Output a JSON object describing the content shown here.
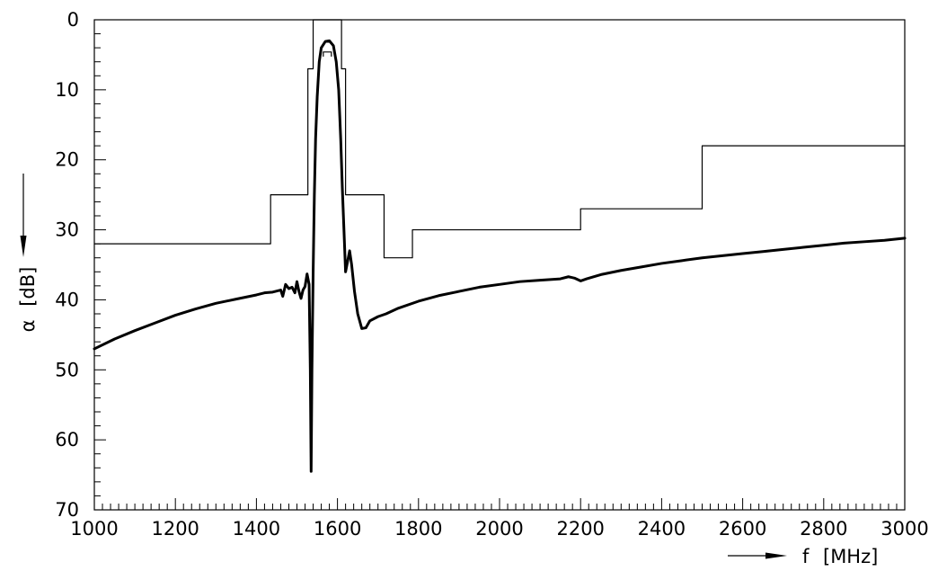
{
  "chart_data": {
    "type": "line",
    "x_axis": {
      "label": "f",
      "unit": "[MHz]",
      "range": [
        1000,
        3000
      ],
      "major_ticks": [
        1000,
        1200,
        1400,
        1600,
        1800,
        2000,
        2200,
        2400,
        2600,
        2800,
        3000
      ],
      "minor_step": 20
    },
    "y_axis": {
      "label": "α",
      "unit": "[dB]",
      "range": [
        0,
        70
      ],
      "inverted": true,
      "major_ticks": [
        0,
        10,
        20,
        30,
        40,
        50,
        60,
        70
      ],
      "minor_step": 2
    },
    "grid": false,
    "legend": "none",
    "series": [
      {
        "kind": "attenuation mask (step limit)",
        "style": "thin",
        "points": [
          [
            1000,
            32
          ],
          [
            1435,
            32
          ],
          [
            1435,
            25
          ],
          [
            1527,
            25
          ],
          [
            1527,
            7
          ],
          [
            1540,
            7
          ],
          [
            1540,
            0
          ],
          [
            1610,
            0
          ],
          [
            1610,
            7
          ],
          [
            1620,
            7
          ],
          [
            1620,
            25
          ],
          [
            1715,
            25
          ],
          [
            1715,
            34
          ],
          [
            1785,
            34
          ],
          [
            1785,
            30
          ],
          [
            2200,
            30
          ],
          [
            2200,
            27
          ],
          [
            2500,
            27
          ],
          [
            2500,
            18
          ],
          [
            3000,
            18
          ]
        ]
      },
      {
        "kind": "passband marker",
        "style": "thin",
        "points": [
          [
            1565,
            5.2
          ],
          [
            1565,
            4.6
          ],
          [
            1585,
            4.6
          ],
          [
            1585,
            5.2
          ]
        ]
      },
      {
        "kind": "measured attenuation",
        "style": "bold",
        "points": [
          [
            1000,
            47
          ],
          [
            1050,
            45.6
          ],
          [
            1100,
            44.4
          ],
          [
            1150,
            43.3
          ],
          [
            1200,
            42.2
          ],
          [
            1250,
            41.3
          ],
          [
            1300,
            40.5
          ],
          [
            1350,
            39.9
          ],
          [
            1400,
            39.3
          ],
          [
            1420,
            39
          ],
          [
            1440,
            38.9
          ],
          [
            1460,
            38.6
          ],
          [
            1465,
            39.5
          ],
          [
            1472,
            37.8
          ],
          [
            1480,
            38.4
          ],
          [
            1488,
            38.2
          ],
          [
            1495,
            39
          ],
          [
            1500,
            37.4
          ],
          [
            1505,
            38.8
          ],
          [
            1510,
            39.8
          ],
          [
            1515,
            38.6
          ],
          [
            1520,
            38.1
          ],
          [
            1525,
            36.3
          ],
          [
            1530,
            37.8
          ],
          [
            1533,
            50
          ],
          [
            1535,
            64.5
          ],
          [
            1537,
            50
          ],
          [
            1540,
            36
          ],
          [
            1543,
            25
          ],
          [
            1546,
            17
          ],
          [
            1550,
            11
          ],
          [
            1555,
            6
          ],
          [
            1560,
            4
          ],
          [
            1570,
            3.1
          ],
          [
            1580,
            3
          ],
          [
            1590,
            3.7
          ],
          [
            1597,
            6
          ],
          [
            1603,
            10
          ],
          [
            1608,
            17
          ],
          [
            1612,
            24
          ],
          [
            1616,
            30
          ],
          [
            1620,
            36
          ],
          [
            1625,
            34.5
          ],
          [
            1630,
            33
          ],
          [
            1635,
            35
          ],
          [
            1642,
            38.8
          ],
          [
            1650,
            42
          ],
          [
            1660,
            44.1
          ],
          [
            1670,
            44
          ],
          [
            1680,
            43
          ],
          [
            1700,
            42.4
          ],
          [
            1720,
            42
          ],
          [
            1750,
            41.2
          ],
          [
            1800,
            40.2
          ],
          [
            1850,
            39.4
          ],
          [
            1900,
            38.8
          ],
          [
            1950,
            38.2
          ],
          [
            2000,
            37.8
          ],
          [
            2050,
            37.4
          ],
          [
            2100,
            37.2
          ],
          [
            2150,
            37
          ],
          [
            2170,
            36.7
          ],
          [
            2185,
            36.9
          ],
          [
            2200,
            37.3
          ],
          [
            2215,
            37
          ],
          [
            2250,
            36.4
          ],
          [
            2300,
            35.8
          ],
          [
            2350,
            35.3
          ],
          [
            2400,
            34.8
          ],
          [
            2450,
            34.4
          ],
          [
            2500,
            34
          ],
          [
            2550,
            33.7
          ],
          [
            2600,
            33.4
          ],
          [
            2650,
            33.1
          ],
          [
            2700,
            32.8
          ],
          [
            2750,
            32.5
          ],
          [
            2800,
            32.2
          ],
          [
            2850,
            31.9
          ],
          [
            2900,
            31.7
          ],
          [
            2950,
            31.5
          ],
          [
            3000,
            31.2
          ]
        ]
      }
    ]
  }
}
